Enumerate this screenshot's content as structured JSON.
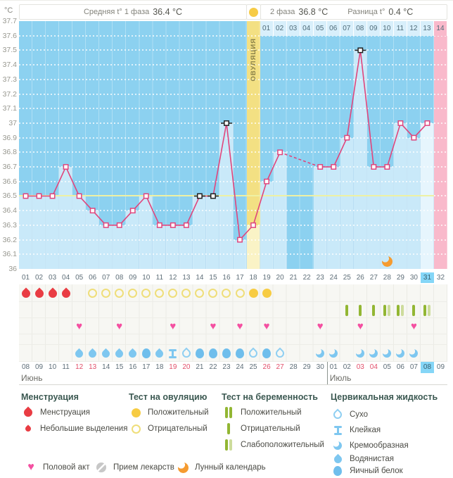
{
  "header": {
    "unit": "°C",
    "phase1_label": "Средняя t° 1 фаза",
    "phase1_value": "36.4 °C",
    "phase2_label": "2 фаза",
    "phase2_value": "36.8 °C",
    "diff_label": "Разница t°",
    "diff_value": "0.4 °C"
  },
  "chart_data": {
    "type": "line",
    "title": "Basal temperature cycle chart",
    "ylabel": "°C",
    "ylim": [
      36.0,
      37.7
    ],
    "y_ticks": [
      "37.7",
      "37.6",
      "37.5",
      "37.4",
      "37.3",
      "37.2",
      "37.1",
      "37",
      "36.9",
      "36.8",
      "36.7",
      "36.6",
      "36.5",
      "36.4",
      "36.3",
      "36.2",
      "36.1",
      "36"
    ],
    "cycle_day_labels": [
      "01",
      "02",
      "03",
      "04",
      "05",
      "06",
      "07",
      "08",
      "09",
      "10",
      "11",
      "12",
      "13",
      "14",
      "15",
      "16",
      "17",
      "18",
      "19",
      "20",
      "21",
      "22",
      "23",
      "24",
      "25",
      "26",
      "27",
      "28",
      "29",
      "30",
      "31",
      "32"
    ],
    "temps_by_day": [
      36.5,
      36.5,
      36.5,
      36.7,
      36.5,
      36.4,
      36.3,
      36.3,
      36.4,
      36.5,
      36.3,
      36.3,
      36.3,
      36.5,
      36.5,
      37.0,
      36.2,
      36.3,
      36.6,
      36.8,
      null,
      null,
      36.7,
      36.7,
      36.9,
      37.5,
      36.7,
      36.7,
      37.0,
      36.9,
      37.0,
      null
    ],
    "missing_days": [
      21,
      22,
      32
    ],
    "dashed_gap": [
      20,
      23
    ],
    "excluded_marker_days": [
      14,
      15,
      16,
      26
    ],
    "coverline": 36.5,
    "ovulation_day": 18,
    "ovulation_label": "ОВУЛЯЦИЯ",
    "today_day": 31,
    "phase2_start_day": 19,
    "phase2_day_labels": [
      "01",
      "02",
      "03",
      "04",
      "05",
      "06",
      "07",
      "08",
      "09",
      "10",
      "11",
      "12",
      "13",
      "14"
    ],
    "moon_day": 28,
    "grid": "dotted-white",
    "legend_position": "bottom"
  },
  "rows": {
    "menstruation_days": [
      1,
      2,
      3,
      4
    ],
    "ovulation_test": {
      "negative_days": [
        6,
        7,
        8,
        9,
        10,
        11,
        12,
        13,
        14,
        15,
        16,
        17
      ],
      "positive_days": [
        18,
        19
      ]
    },
    "pregnancy_test": {
      "negative_days": [
        25,
        26,
        27,
        30
      ],
      "weak_positive_days": [
        28,
        29,
        31
      ]
    },
    "intercourse_days": [
      5,
      8,
      12,
      15,
      17,
      19,
      23,
      26,
      30
    ],
    "cervical_fluid": [
      {
        "day": 5,
        "type": "watery"
      },
      {
        "day": 6,
        "type": "watery"
      },
      {
        "day": 7,
        "type": "watery"
      },
      {
        "day": 8,
        "type": "watery"
      },
      {
        "day": 9,
        "type": "watery"
      },
      {
        "day": 10,
        "type": "eggwhite"
      },
      {
        "day": 11,
        "type": "watery"
      },
      {
        "day": 12,
        "type": "sticky"
      },
      {
        "day": 13,
        "type": "dry"
      },
      {
        "day": 14,
        "type": "eggwhite"
      },
      {
        "day": 15,
        "type": "eggwhite"
      },
      {
        "day": 16,
        "type": "eggwhite"
      },
      {
        "day": 17,
        "type": "eggwhite"
      },
      {
        "day": 18,
        "type": "dry"
      },
      {
        "day": 19,
        "type": "eggwhite"
      },
      {
        "day": 20,
        "type": "dry"
      },
      {
        "day": 23,
        "type": "creamy"
      },
      {
        "day": 24,
        "type": "creamy"
      },
      {
        "day": 26,
        "type": "creamy"
      },
      {
        "day": 27,
        "type": "creamy"
      },
      {
        "day": 28,
        "type": "creamy"
      },
      {
        "day": 29,
        "type": "creamy"
      },
      {
        "day": 30,
        "type": "creamy"
      }
    ]
  },
  "calendar": {
    "dates": [
      "08",
      "09",
      "10",
      "11",
      "12",
      "13",
      "14",
      "15",
      "16",
      "17",
      "18",
      "19",
      "20",
      "21",
      "22",
      "23",
      "24",
      "25",
      "26",
      "27",
      "28",
      "29",
      "30",
      "01",
      "02",
      "03",
      "04",
      "05",
      "06",
      "07",
      "08",
      "09"
    ],
    "weekend_days": [
      5,
      6,
      12,
      13,
      19,
      20,
      26,
      27
    ],
    "today_day": 31,
    "month1": "Июнь",
    "month2": "Июль",
    "month2_start_day": 24
  },
  "legend": {
    "menstruation": {
      "title": "Менструация",
      "items": [
        {
          "icon": "menstruation-drop-icon",
          "label": "Менструация"
        },
        {
          "icon": "spotting-drop-icon",
          "label": "Небольшие выделения"
        }
      ]
    },
    "ovulation_test": {
      "title": "Тест на овуляцию",
      "items": [
        {
          "icon": "circle-filled-icon",
          "label": "Положительный"
        },
        {
          "icon": "circle-open-icon",
          "label": "Отрицательный"
        }
      ]
    },
    "pregnancy_test": {
      "title": "Тест на беременность",
      "items": [
        {
          "icon": "two-bars-icon",
          "label": "Положительный"
        },
        {
          "icon": "one-bar-icon",
          "label": "Отрицательный"
        },
        {
          "icon": "bar-faint-bar-icon",
          "label": "Слабоположительный"
        }
      ]
    },
    "cervical_fluid": {
      "title": "Цервикальная жидкость",
      "items": [
        {
          "icon": "dry-drop-icon",
          "label": "Сухо"
        },
        {
          "icon": "sticky-icon",
          "label": "Клейкая"
        },
        {
          "icon": "creamy-icon",
          "label": "Кремообразная"
        },
        {
          "icon": "watery-drop-icon",
          "label": "Водянистая"
        },
        {
          "icon": "eggwhite-drop-icon",
          "label": "Яичный белок"
        }
      ]
    },
    "extras": [
      {
        "icon": "heart-icon",
        "label": "Половой акт"
      },
      {
        "icon": "pill-icon",
        "label": "Прием лекарств"
      },
      {
        "icon": "moon-icon",
        "label": "Лунный календарь"
      }
    ]
  },
  "colors": {
    "plot_bg": "#8CD1F0",
    "bar_fill": "#C9E9F9",
    "today_bar": "#E6F5FD",
    "ovulation_band": "#F3E083",
    "ovulation_bar": "#FAF3C6",
    "premenstrual_band": "#F9B9CB",
    "coverline": "#EEF1A4",
    "temp_line": "#E0457C",
    "excluded_marker": "#1F1F1F",
    "menses_red": "#E93C43",
    "ovu_test_yellow": "#F7CC43",
    "pregnancy_green": "#92B633",
    "pregnancy_green_light": "#CDDC9C",
    "heart_pink": "#F450A1",
    "fluid_blue": "#7EC7F0",
    "today_highlight": "#85D6F7",
    "weekend_red": "#E2506B",
    "moon_orange": "#F59B30"
  }
}
